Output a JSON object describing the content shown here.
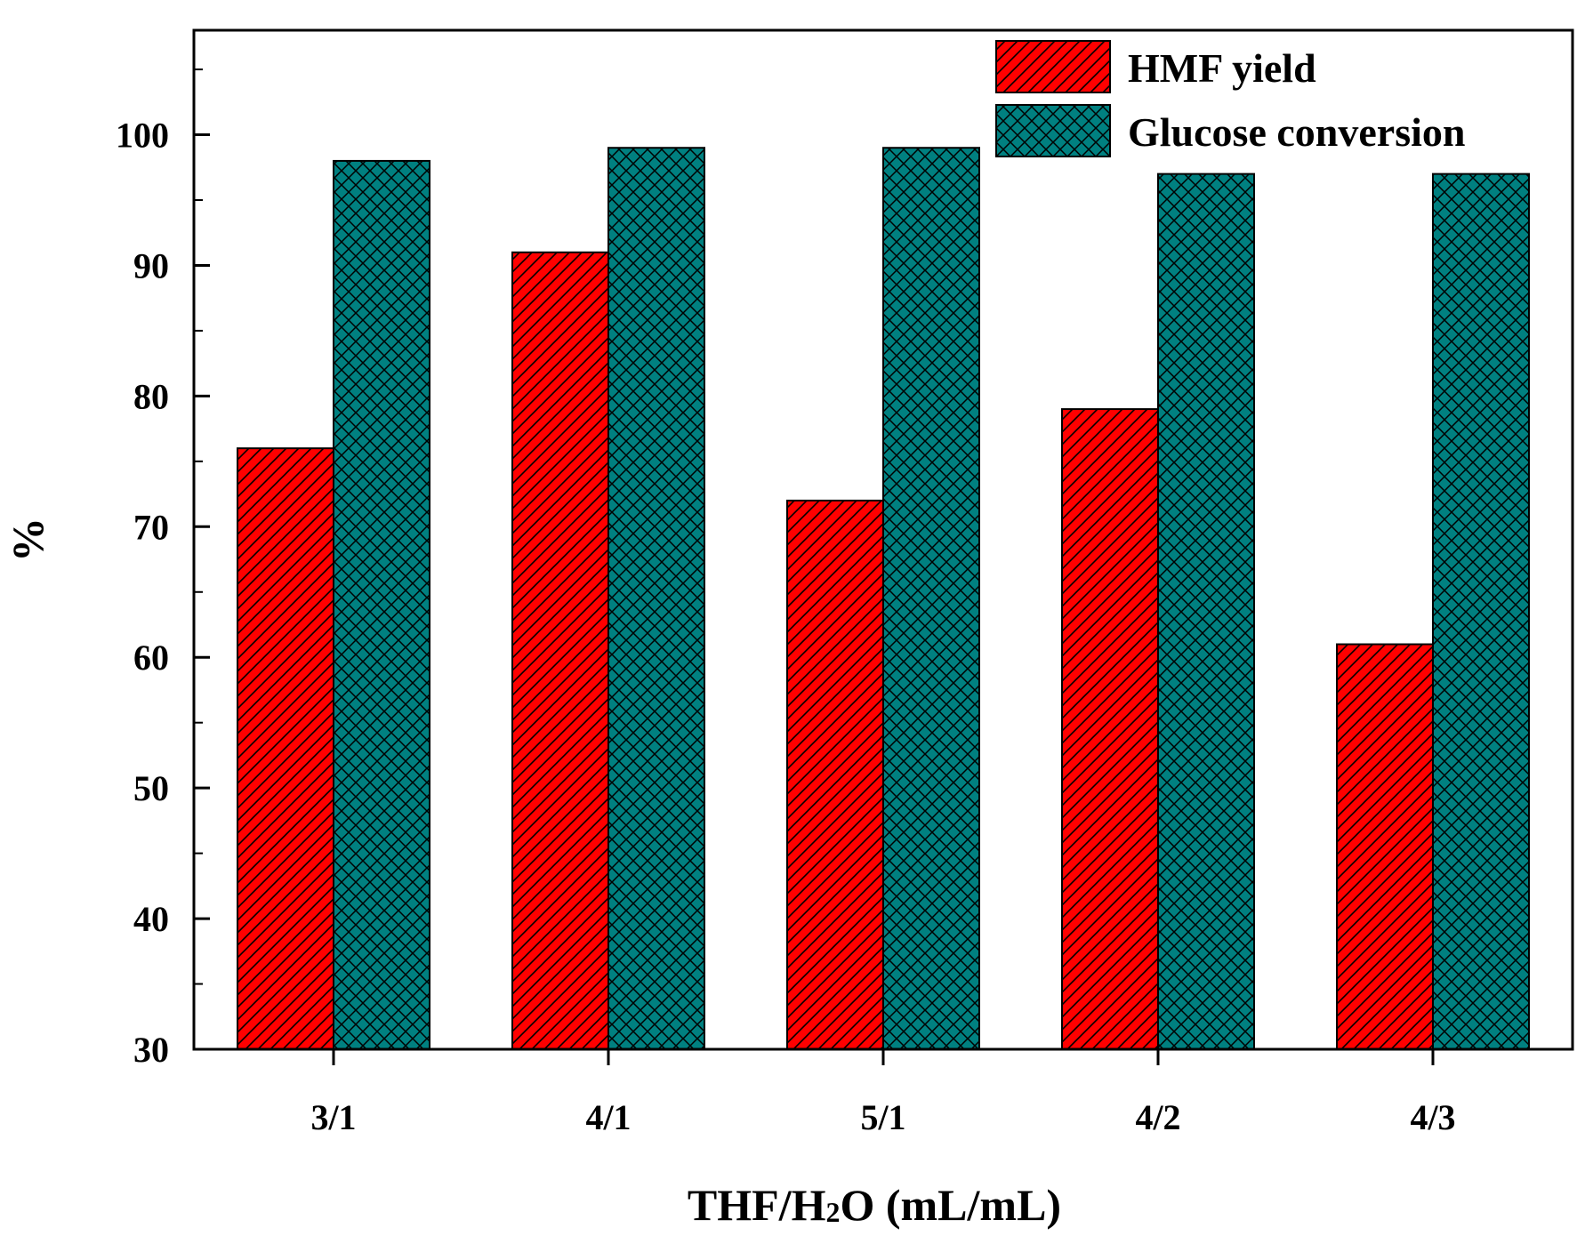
{
  "chart_data": {
    "type": "bar",
    "title": "",
    "xlabel": "THF/H2O (mL/mL)",
    "xlabel_parts": {
      "prefix": "THF/H",
      "subscript": "2",
      "suffix": "O (mL/mL)"
    },
    "ylabel": "%",
    "categories": [
      "3/1",
      "4/1",
      "5/1",
      "4/2",
      "4/3"
    ],
    "ylim": [
      30,
      108
    ],
    "yticks": [
      30,
      40,
      50,
      60,
      70,
      80,
      90,
      100
    ],
    "grid": false,
    "legend_position": "top-right",
    "series": [
      {
        "name": "HMF yield",
        "color": "#ff0000",
        "pattern": "diagonal-hatch",
        "values": [
          76,
          91,
          72,
          79,
          61
        ]
      },
      {
        "name": "Glucose conversion",
        "color": "#008080",
        "pattern": "cross-hatch",
        "values": [
          98,
          99,
          99,
          97,
          97
        ]
      }
    ]
  }
}
